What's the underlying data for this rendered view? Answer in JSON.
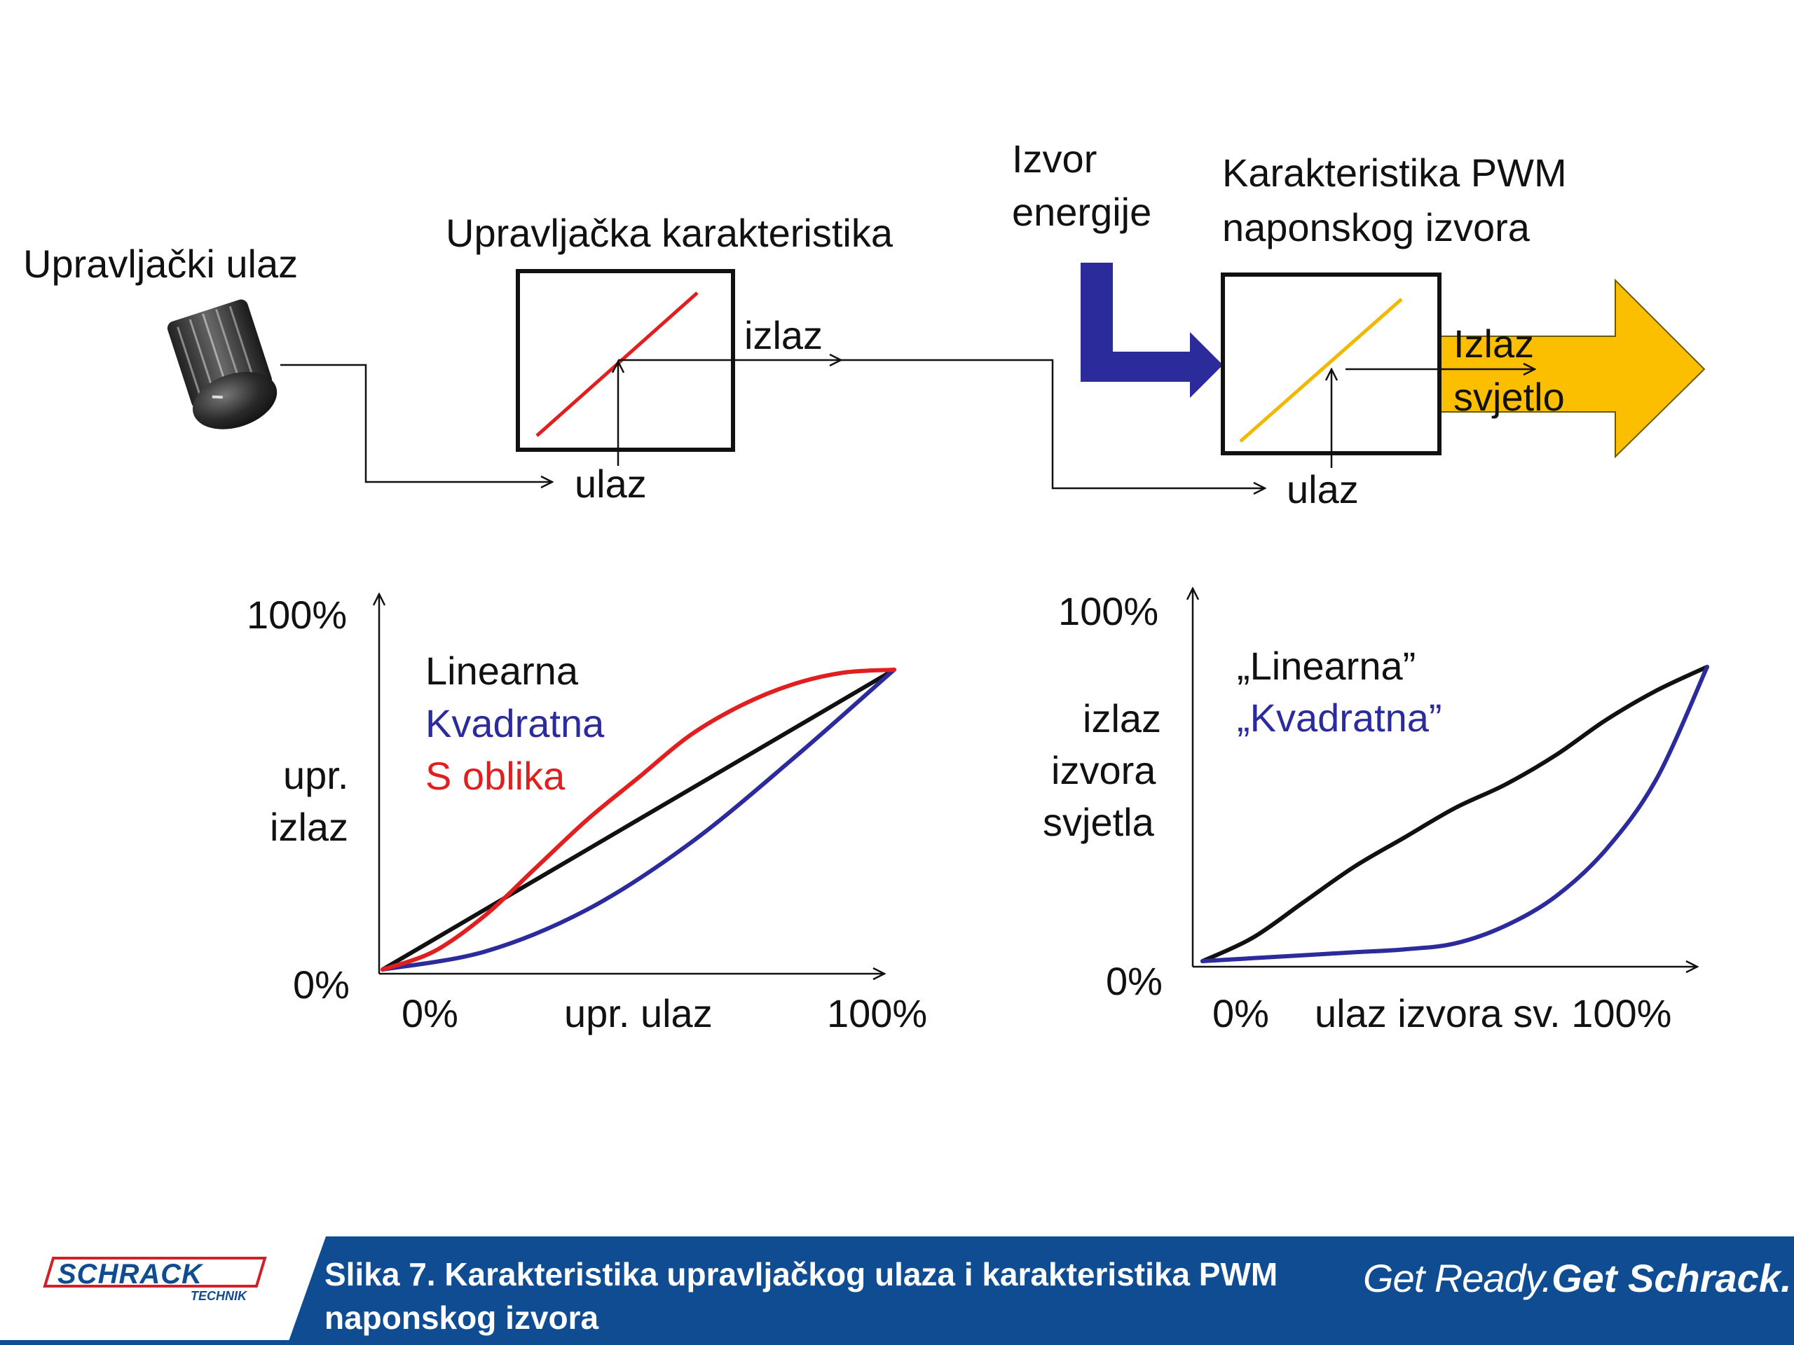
{
  "diagram": {
    "knob_label": "Upravljački ulaz",
    "control_block": {
      "title": "Upravljačka karakteristika",
      "output_label": "izlaz",
      "input_label": "ulaz"
    },
    "energy_label_line1": "Izvor",
    "energy_label_line2": "energije",
    "pwm_block": {
      "title_line1": "Karakteristika PWM",
      "title_line2": "naponskog izvora",
      "input_label": "ulaz",
      "output_line1": "Izlaz",
      "output_line2": "svjetlo"
    },
    "colors": {
      "control_line": "#e02020",
      "pwm_line": "#f0b800",
      "energy_arrow": "#2b2b9c",
      "output_arrow": "#fbbf00"
    }
  },
  "chart_left": {
    "y_top": "100%",
    "y_bottom": "0%",
    "x_left": "0%",
    "x_label": "upr. ulaz",
    "x_right": "100%",
    "y_label_line1": "upr.",
    "y_label_line2": "izlaz",
    "legend": [
      "Linearna",
      "Kvadratna",
      "S oblika"
    ]
  },
  "chart_right": {
    "y_top": "100%",
    "y_bottom": "0%",
    "x_left": "0%",
    "x_label": "ulaz izvora sv. 100%",
    "y_label_line1": "izlaz",
    "y_label_line2": "izvora",
    "y_label_line3": "svjetla",
    "legend": [
      "„Linearna”",
      "„Kvadratna”"
    ]
  },
  "chart_data": [
    {
      "type": "line",
      "series": [
        {
          "name": "Linearna",
          "color": "#111111",
          "x": [
            0,
            100
          ],
          "y": [
            0,
            100
          ]
        },
        {
          "name": "Kvadratna",
          "color": "#2b2b9c",
          "x": [
            0,
            20,
            40,
            60,
            80,
            100
          ],
          "y": [
            0,
            6,
            20,
            42,
            70,
            100
          ]
        },
        {
          "name": "S oblika",
          "color": "#e02020",
          "x": [
            0,
            10,
            20,
            30,
            40,
            50,
            60,
            70,
            80,
            90,
            100
          ],
          "y": [
            0,
            6,
            18,
            34,
            50,
            64,
            78,
            88,
            95,
            99,
            100
          ]
        }
      ]
    },
    {
      "type": "line",
      "series": [
        {
          "name": "„Linearna”",
          "color": "#111111",
          "x": [
            0,
            10,
            20,
            30,
            40,
            50,
            60,
            70,
            80,
            90,
            100
          ],
          "y": [
            0,
            8,
            20,
            32,
            42,
            52,
            60,
            70,
            82,
            92,
            100
          ]
        },
        {
          "name": "„Kvadratna”",
          "color": "#2b2b9c",
          "x": [
            0,
            10,
            20,
            30,
            40,
            50,
            60,
            70,
            80,
            90,
            100
          ],
          "y": [
            0,
            1,
            2,
            3,
            4,
            6,
            12,
            22,
            38,
            62,
            100
          ]
        }
      ]
    }
  ],
  "footer": {
    "caption": "Slika 7. Karakteristika upravljačkog ulaza i karakteristika PWM naponskog izvora",
    "tagline_light": "Get Ready.",
    "tagline_bold": "Get Schrack.",
    "logo_text": "SCHRACK",
    "logo_subtext": "TECHNIK",
    "bar_color": "#0f4c92"
  }
}
